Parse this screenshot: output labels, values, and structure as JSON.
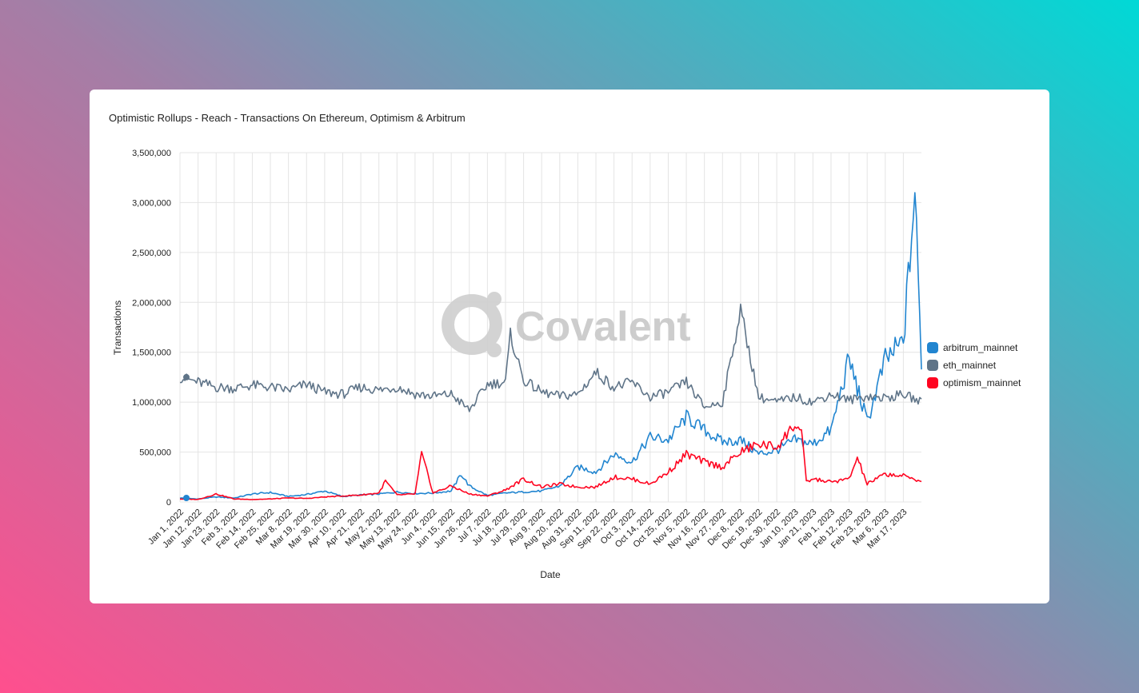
{
  "title": "Optimistic Rollups - Reach - Transactions On Ethereum, Optimism & Arbitrum",
  "watermark": "Covalent",
  "colors": {
    "arbitrum": "#2185d0",
    "eth": "#5f7488",
    "optimism": "#ff0420",
    "grid": "#e4e4e4"
  },
  "chart_data": {
    "type": "line",
    "title": "Optimistic Rollups - Reach - Transactions On Ethereum, Optimism & Arbitrum",
    "xlabel": "Date",
    "ylabel": "Transactions",
    "ylim": [
      0,
      3500000
    ],
    "yticks": [
      "0",
      "500,000",
      "1,000,000",
      "1,500,000",
      "2,000,000",
      "2,500,000",
      "3,000,000",
      "3,500,000"
    ],
    "x_start": "Jan 1, 2022",
    "x_end": "Mar 28, 2023",
    "xtick_labels": [
      "Jan 1, 2022",
      "Jan 12, 2022",
      "Jan 23, 2022",
      "Feb 3, 2022",
      "Feb 14, 2022",
      "Feb 25, 2022",
      "Mar 8, 2022",
      "Mar 19, 2022",
      "Mar 30, 2022",
      "Apr 10, 2022",
      "Apr 21, 2022",
      "May 2, 2022",
      "May 13, 2022",
      "May 24, 2022",
      "Jun 4, 2022",
      "Jun 15, 2022",
      "Jun 26, 2022",
      "Jul 7, 2022",
      "Jul 18, 2022",
      "Jul 29, 2022",
      "Aug 9, 2022",
      "Aug 20, 2022",
      "Aug 31, 2022",
      "Sep 11, 2022",
      "Sep 22, 2022",
      "Oct 3, 2022",
      "Oct 14, 2022",
      "Oct 25, 2022",
      "Nov 5, 2022",
      "Nov 16, 2022",
      "Nov 27, 2022",
      "Dec 8, 2022",
      "Dec 19, 2022",
      "Dec 30, 2022",
      "Jan 10, 2023",
      "Jan 21, 2023",
      "Feb 1, 2023",
      "Feb 12, 2023",
      "Feb 23, 2023",
      "Mar 6, 2023",
      "Mar 17, 2023"
    ],
    "legend_position": "right",
    "grid": true,
    "series": [
      {
        "name": "arbitrum_mainnet",
        "color": "#2185d0",
        "points": [
          [
            "Jan 1, 2022",
            40000
          ],
          [
            "Jan 12, 2022",
            30000
          ],
          [
            "Jan 23, 2022",
            50000
          ],
          [
            "Feb 3, 2022",
            40000
          ],
          [
            "Feb 14, 2022",
            80000
          ],
          [
            "Feb 25, 2022",
            95000
          ],
          [
            "Mar 8, 2022",
            55000
          ],
          [
            "Mar 19, 2022",
            75000
          ],
          [
            "Mar 30, 2022",
            110000
          ],
          [
            "Apr 10, 2022",
            55000
          ],
          [
            "Apr 21, 2022",
            70000
          ],
          [
            "May 2, 2022",
            80000
          ],
          [
            "May 13, 2022",
            100000
          ],
          [
            "May 24, 2022",
            85000
          ],
          [
            "Jun 4, 2022",
            90000
          ],
          [
            "Jun 15, 2022",
            110000
          ],
          [
            "Jun 21, 2022",
            280000
          ],
          [
            "Jun 26, 2022",
            160000
          ],
          [
            "Jul 7, 2022",
            65000
          ],
          [
            "Jul 18, 2022",
            90000
          ],
          [
            "Jul 29, 2022",
            100000
          ],
          [
            "Aug 9, 2022",
            110000
          ],
          [
            "Aug 20, 2022",
            160000
          ],
          [
            "Aug 31, 2022",
            350000
          ],
          [
            "Sep 11, 2022",
            300000
          ],
          [
            "Sep 22, 2022",
            480000
          ],
          [
            "Oct 3, 2022",
            400000
          ],
          [
            "Oct 14, 2022",
            650000
          ],
          [
            "Oct 25, 2022",
            620000
          ],
          [
            "Nov 5, 2022",
            850000
          ],
          [
            "Nov 16, 2022",
            720000
          ],
          [
            "Nov 27, 2022",
            600000
          ],
          [
            "Dec 8, 2022",
            620000
          ],
          [
            "Dec 19, 2022",
            480000
          ],
          [
            "Dec 30, 2022",
            520000
          ],
          [
            "Jan 10, 2023",
            620000
          ],
          [
            "Jan 21, 2023",
            580000
          ],
          [
            "Feb 1, 2023",
            720000
          ],
          [
            "Feb 12, 2023",
            1430000
          ],
          [
            "Feb 23, 2023",
            800000
          ],
          [
            "Mar 6, 2023",
            1420000
          ],
          [
            "Mar 17, 2023",
            1600000
          ],
          [
            "Mar 24, 2023",
            3090000
          ],
          [
            "Mar 28, 2023",
            1400000
          ]
        ]
      },
      {
        "name": "eth_mainnet",
        "color": "#5f7488",
        "points": [
          [
            "Jan 1, 2022",
            1250000
          ],
          [
            "Jan 12, 2022",
            1200000
          ],
          [
            "Jan 23, 2022",
            1150000
          ],
          [
            "Feb 3, 2022",
            1140000
          ],
          [
            "Feb 14, 2022",
            1170000
          ],
          [
            "Feb 25, 2022",
            1150000
          ],
          [
            "Mar 8, 2022",
            1120000
          ],
          [
            "Mar 19, 2022",
            1180000
          ],
          [
            "Mar 30, 2022",
            1100000
          ],
          [
            "Apr 10, 2022",
            1080000
          ],
          [
            "Apr 21, 2022",
            1150000
          ],
          [
            "May 2, 2022",
            1120000
          ],
          [
            "May 13, 2022",
            1150000
          ],
          [
            "May 24, 2022",
            1080000
          ],
          [
            "Jun 4, 2022",
            1060000
          ],
          [
            "Jun 15, 2022",
            1080000
          ],
          [
            "Jun 26, 2022",
            920000
          ],
          [
            "Jul 7, 2022",
            1180000
          ],
          [
            "Jul 18, 2022",
            1200000
          ],
          [
            "Jul 21, 2022",
            1670000
          ],
          [
            "Jul 29, 2022",
            1220000
          ],
          [
            "Aug 9, 2022",
            1100000
          ],
          [
            "Aug 20, 2022",
            1060000
          ],
          [
            "Aug 31, 2022",
            1080000
          ],
          [
            "Sep 11, 2022",
            1300000
          ],
          [
            "Sep 22, 2022",
            1150000
          ],
          [
            "Oct 3, 2022",
            1200000
          ],
          [
            "Oct 14, 2022",
            1050000
          ],
          [
            "Oct 25, 2022",
            1100000
          ],
          [
            "Nov 5, 2022",
            1200000
          ],
          [
            "Nov 16, 2022",
            950000
          ],
          [
            "Nov 27, 2022",
            1000000
          ],
          [
            "Dec 8, 2022",
            1920000
          ],
          [
            "Dec 19, 2022",
            1050000
          ],
          [
            "Dec 30, 2022",
            1000000
          ],
          [
            "Jan 10, 2023",
            1050000
          ],
          [
            "Jan 21, 2023",
            1000000
          ],
          [
            "Feb 1, 2023",
            1080000
          ],
          [
            "Feb 12, 2023",
            1020000
          ],
          [
            "Feb 23, 2023",
            1060000
          ],
          [
            "Mar 6, 2023",
            1040000
          ],
          [
            "Mar 17, 2023",
            1080000
          ],
          [
            "Mar 28, 2023",
            1000000
          ]
        ]
      },
      {
        "name": "optimism_mainnet",
        "color": "#ff0420",
        "points": [
          [
            "Jan 1, 2022",
            30000
          ],
          [
            "Jan 12, 2022",
            25000
          ],
          [
            "Jan 23, 2022",
            80000
          ],
          [
            "Feb 3, 2022",
            30000
          ],
          [
            "Feb 14, 2022",
            25000
          ],
          [
            "Feb 25, 2022",
            30000
          ],
          [
            "Mar 8, 2022",
            40000
          ],
          [
            "Mar 19, 2022",
            35000
          ],
          [
            "Mar 30, 2022",
            50000
          ],
          [
            "Apr 10, 2022",
            60000
          ],
          [
            "Apr 21, 2022",
            70000
          ],
          [
            "May 2, 2022",
            90000
          ],
          [
            "May 6, 2022",
            210000
          ],
          [
            "May 13, 2022",
            70000
          ],
          [
            "May 24, 2022",
            80000
          ],
          [
            "May 28, 2022",
            480000
          ],
          [
            "Jun 4, 2022",
            90000
          ],
          [
            "Jun 15, 2022",
            160000
          ],
          [
            "Jun 26, 2022",
            80000
          ],
          [
            "Jul 7, 2022",
            60000
          ],
          [
            "Jul 18, 2022",
            120000
          ],
          [
            "Jul 29, 2022",
            230000
          ],
          [
            "Aug 9, 2022",
            150000
          ],
          [
            "Aug 20, 2022",
            180000
          ],
          [
            "Aug 31, 2022",
            150000
          ],
          [
            "Sep 11, 2022",
            150000
          ],
          [
            "Sep 22, 2022",
            250000
          ],
          [
            "Oct 3, 2022",
            230000
          ],
          [
            "Oct 14, 2022",
            180000
          ],
          [
            "Oct 25, 2022",
            300000
          ],
          [
            "Nov 5, 2022",
            480000
          ],
          [
            "Nov 16, 2022",
            400000
          ],
          [
            "Nov 27, 2022",
            350000
          ],
          [
            "Dec 8, 2022",
            500000
          ],
          [
            "Dec 19, 2022",
            580000
          ],
          [
            "Dec 30, 2022",
            550000
          ],
          [
            "Jan 10, 2023",
            780000
          ],
          [
            "Jan 14, 2023",
            700000
          ],
          [
            "Jan 17, 2023",
            200000
          ],
          [
            "Jan 21, 2023",
            230000
          ],
          [
            "Feb 1, 2023",
            200000
          ],
          [
            "Feb 12, 2023",
            230000
          ],
          [
            "Feb 17, 2023",
            440000
          ],
          [
            "Feb 23, 2023",
            180000
          ],
          [
            "Mar 6, 2023",
            280000
          ],
          [
            "Mar 17, 2023",
            260000
          ],
          [
            "Mar 28, 2023",
            210000
          ]
        ]
      }
    ]
  }
}
